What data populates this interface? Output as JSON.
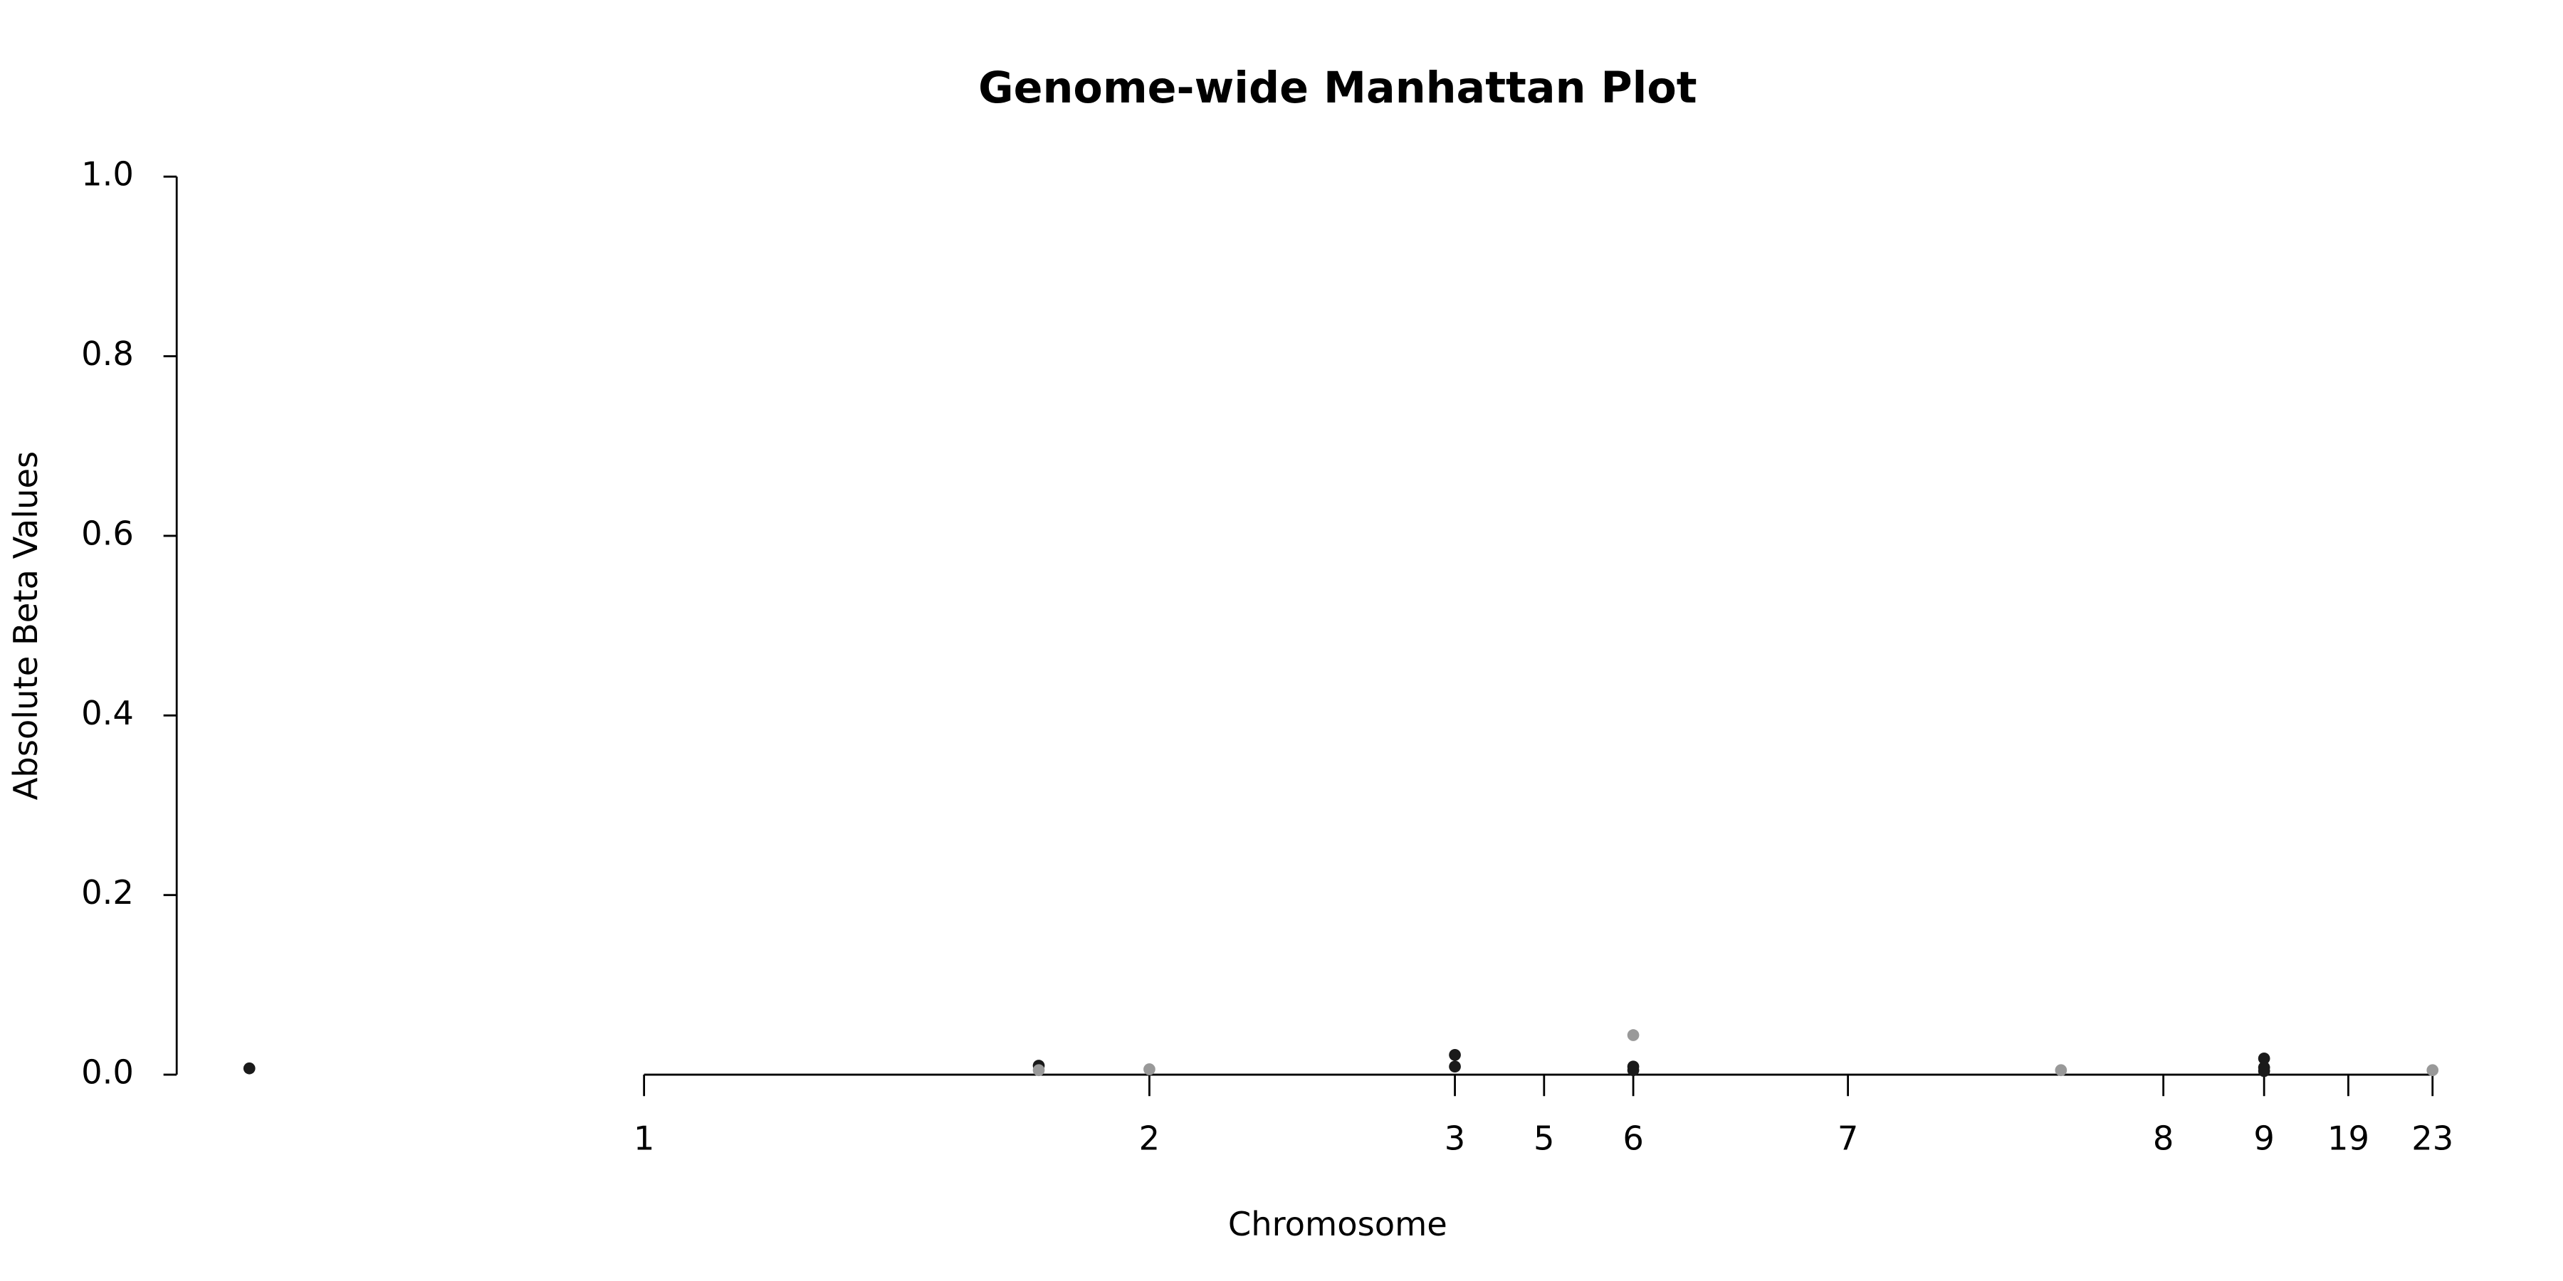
{
  "chart_data": {
    "type": "scatter",
    "title": "Genome-wide Manhattan Plot",
    "x_label": "Chromosome",
    "y_label": "Absolute Beta Values",
    "x": [
      44,
      522,
      522,
      589,
      774,
      774,
      882,
      882,
      882,
      1141,
      1264,
      1264,
      1264,
      1366
    ],
    "values": [
      0.007,
      0.01,
      0.005,
      0.006,
      0.022,
      0.009,
      0.044,
      0.009,
      0.005,
      0.005,
      0.018,
      0.008,
      0.004,
      0.005
    ],
    "colors": [
      "#1a1a1a",
      "#1a1a1a",
      "#999999",
      "#999999",
      "#1a1a1a",
      "#1a1a1a",
      "#999999",
      "#1a1a1a",
      "#1a1a1a",
      "#999999",
      "#1a1a1a",
      "#1a1a1a",
      "#1a1a1a",
      "#999999"
    ],
    "xlim": [
      0,
      1413
    ],
    "xticks": [
      {
        "value": 283,
        "label": "1"
      },
      {
        "value": 589,
        "label": "2"
      },
      {
        "value": 774,
        "label": "3"
      },
      {
        "value": 828,
        "label": "5"
      },
      {
        "value": 882,
        "label": "6"
      },
      {
        "value": 1012,
        "label": "7"
      },
      {
        "value": 1203,
        "label": "8"
      },
      {
        "value": 1264,
        "label": "9"
      },
      {
        "value": 1315,
        "label": "19"
      },
      {
        "value": 1366,
        "label": "23"
      }
    ],
    "ylim": [
      0,
      1
    ],
    "yticks": [
      {
        "value": 0,
        "label": "0.0"
      },
      0.2,
      0.4,
      0.6,
      0.8,
      {
        "value": 1,
        "label": "1.0"
      }
    ],
    "grid": false
  }
}
